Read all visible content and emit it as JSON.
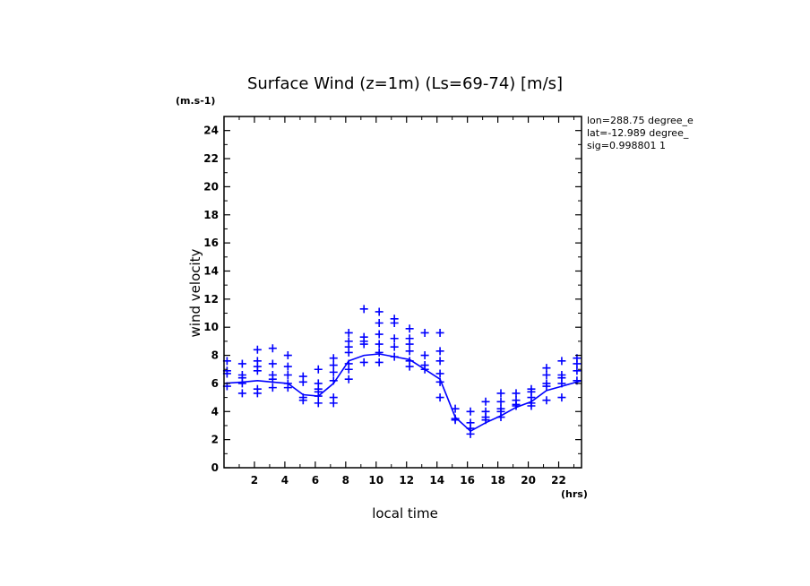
{
  "chart_data": {
    "type": "scatter",
    "title": "Surface Wind (z=1m) (Ls=69-74) [m/s]",
    "y_unit": "(m.s-1)",
    "x_unit": "(hrs)",
    "xlabel": "local time",
    "ylabel": "wind velocity",
    "xlim": [
      0,
      23.5
    ],
    "ylim": [
      0,
      25
    ],
    "x_ticks": [
      2,
      4,
      6,
      8,
      10,
      12,
      14,
      16,
      18,
      20,
      22
    ],
    "y_ticks": [
      0,
      2,
      4,
      6,
      8,
      10,
      12,
      14,
      16,
      18,
      20,
      22,
      24
    ],
    "info_lines": [
      "lon=288.75 degree_e",
      "lat=-12.989 degree_",
      "sig=0.998801 1"
    ],
    "grid": false,
    "color": "#0000ff",
    "series": [
      {
        "kind": "line",
        "x": [
          0,
          1.2,
          2.2,
          3.2,
          4.2,
          5.2,
          6.2,
          7.2,
          8.2,
          9.2,
          10.2,
          11.2,
          12.2,
          13.2,
          14.2,
          15.2,
          16.2,
          17.2,
          18.2,
          19.2,
          20.2,
          21.2,
          22.2,
          23.5
        ],
        "y": [
          6.0,
          6.1,
          6.2,
          6.1,
          6.0,
          5.2,
          5.1,
          6.0,
          7.6,
          8.0,
          8.1,
          7.9,
          7.7,
          7.0,
          6.3,
          3.6,
          2.6,
          3.2,
          3.7,
          4.3,
          4.7,
          5.5,
          5.8,
          6.2
        ]
      },
      {
        "kind": "points",
        "x": [
          0.2,
          0.2,
          0.2,
          0.2,
          1.2,
          1.2,
          1.2,
          1.2,
          1.2,
          2.2,
          2.2,
          2.2,
          2.2,
          2.2,
          2.2,
          3.2,
          3.2,
          3.2,
          3.2,
          3.2,
          4.2,
          4.2,
          4.2,
          4.2,
          4.2,
          5.2,
          5.2,
          5.2,
          5.2,
          6.2,
          6.2,
          6.2,
          6.2,
          6.2,
          6.2,
          7.2,
          7.2,
          7.2,
          7.2,
          7.2,
          7.2,
          8.2,
          8.2,
          8.2,
          8.2,
          8.2,
          8.2,
          8.2,
          9.2,
          9.2,
          9.2,
          9.2,
          9.2,
          10.2,
          10.2,
          10.2,
          10.2,
          10.2,
          10.2,
          11.2,
          11.2,
          11.2,
          11.2,
          11.2,
          12.2,
          12.2,
          12.2,
          12.2,
          12.2,
          12.2,
          13.2,
          13.2,
          13.2,
          13.2,
          14.2,
          14.2,
          14.2,
          14.2,
          14.2,
          14.2,
          15.2,
          15.2,
          15.2,
          16.2,
          16.2,
          16.2,
          16.2,
          17.2,
          17.2,
          17.2,
          17.2,
          18.2,
          18.2,
          18.2,
          18.2,
          18.2,
          19.2,
          19.2,
          19.2,
          19.2,
          20.2,
          20.2,
          20.2,
          20.2,
          20.2,
          21.2,
          21.2,
          21.2,
          21.2,
          21.2,
          22.2,
          22.2,
          22.2,
          22.2,
          22.2,
          23.2,
          23.2,
          23.2,
          23.2
        ],
        "y": [
          7.6,
          6.9,
          6.7,
          5.8,
          7.4,
          6.6,
          6.4,
          6.0,
          5.3,
          8.4,
          7.6,
          7.2,
          6.9,
          5.6,
          5.3,
          8.5,
          7.4,
          6.6,
          6.3,
          5.7,
          8.0,
          7.2,
          6.6,
          6.0,
          5.7,
          6.5,
          6.1,
          5.0,
          4.8,
          7.0,
          6.0,
          5.6,
          5.4,
          5.1,
          4.6,
          7.8,
          7.3,
          6.8,
          6.2,
          5.0,
          4.6,
          9.6,
          9.0,
          8.6,
          8.2,
          7.4,
          7.0,
          6.3,
          11.3,
          9.3,
          9.0,
          8.8,
          7.5,
          11.1,
          10.3,
          9.5,
          8.8,
          8.2,
          7.5,
          10.6,
          10.3,
          9.2,
          8.6,
          7.9,
          9.9,
          9.2,
          8.8,
          8.3,
          7.6,
          7.2,
          9.6,
          8.0,
          7.3,
          7.0,
          9.6,
          8.3,
          7.6,
          6.7,
          6.1,
          5.0,
          4.2,
          3.5,
          3.4,
          4.0,
          3.2,
          2.8,
          2.4,
          4.7,
          4.0,
          3.6,
          3.4,
          5.3,
          4.7,
          4.2,
          4.0,
          3.6,
          5.3,
          4.8,
          4.5,
          4.4,
          5.6,
          5.4,
          5.0,
          4.6,
          4.4,
          7.1,
          6.6,
          6.0,
          5.8,
          4.8,
          7.6,
          6.6,
          6.4,
          6.0,
          5.0,
          7.8,
          7.4,
          6.9,
          6.2
        ]
      }
    ]
  }
}
